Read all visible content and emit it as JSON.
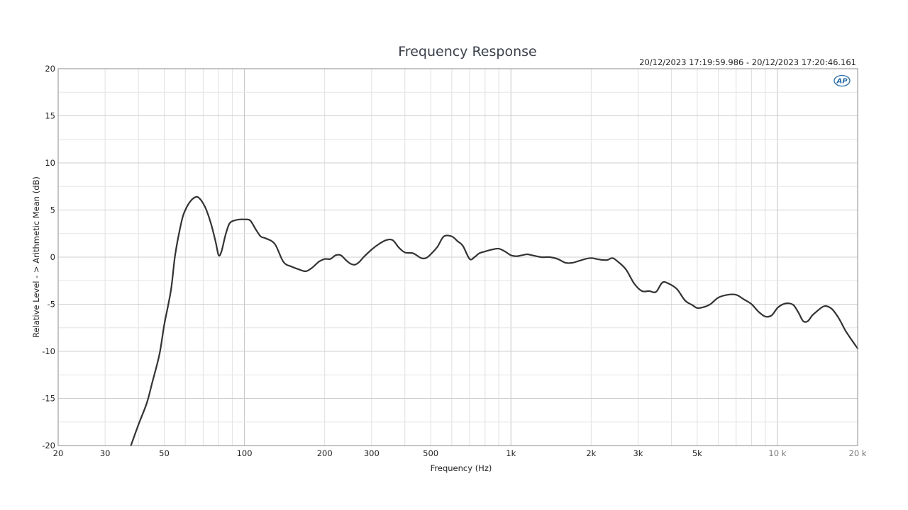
{
  "chart_data": {
    "type": "line",
    "title": "Frequency Response",
    "timestamp": "20/12/2023 17:19:59.986 - 20/12/2023 17:20:46.161",
    "xlabel": "Frequency (Hz)",
    "ylabel": "Relative Level - > Arithmetic Mean (dB)",
    "x_scale": "log",
    "xlim": [
      20,
      20000
    ],
    "ylim": [
      -20,
      20
    ],
    "grid": true,
    "legend": "none",
    "logo": "AP",
    "x_ticks": [
      {
        "value": 20,
        "label": "20"
      },
      {
        "value": 30,
        "label": "30"
      },
      {
        "value": 50,
        "label": "50"
      },
      {
        "value": 100,
        "label": "100"
      },
      {
        "value": 200,
        "label": "200"
      },
      {
        "value": 300,
        "label": "300"
      },
      {
        "value": 500,
        "label": "500"
      },
      {
        "value": 1000,
        "label": "1k"
      },
      {
        "value": 2000,
        "label": "2k"
      },
      {
        "value": 3000,
        "label": "3k"
      },
      {
        "value": 5000,
        "label": "5k"
      },
      {
        "value": 10000,
        "label": "10 k"
      },
      {
        "value": 20000,
        "label": "20 k"
      }
    ],
    "y_ticks": [
      {
        "value": 20,
        "label": "20"
      },
      {
        "value": 15,
        "label": "15"
      },
      {
        "value": 10,
        "label": "10"
      },
      {
        "value": 5,
        "label": "5"
      },
      {
        "value": 0,
        "label": "0"
      },
      {
        "value": -5,
        "label": "-5"
      },
      {
        "value": -10,
        "label": "-10"
      },
      {
        "value": -15,
        "label": "-15"
      },
      {
        "value": -20,
        "label": "-20"
      }
    ],
    "series": [
      {
        "color": "#333333",
        "x": [
          37.5,
          40,
          43,
          45,
          48,
          50,
          53,
          55,
          58,
          60,
          63,
          66,
          68,
          70,
          72,
          75,
          78,
          80,
          82,
          85,
          88,
          92,
          96,
          100,
          105,
          110,
          115,
          120,
          130,
          140,
          150,
          160,
          170,
          180,
          190,
          200,
          210,
          220,
          230,
          240,
          250,
          260,
          270,
          280,
          300,
          320,
          340,
          360,
          380,
          400,
          430,
          460,
          480,
          500,
          530,
          560,
          600,
          630,
          660,
          700,
          730,
          760,
          800,
          850,
          900,
          950,
          1000,
          1050,
          1100,
          1150,
          1200,
          1300,
          1400,
          1500,
          1600,
          1700,
          1800,
          1900,
          2000,
          2100,
          2200,
          2300,
          2400,
          2500,
          2700,
          2900,
          3100,
          3300,
          3500,
          3700,
          3900,
          4200,
          4500,
          4800,
          5000,
          5300,
          5600,
          6000,
          6500,
          7000,
          7500,
          8000,
          8500,
          9000,
          9500,
          10000,
          10500,
          11000,
          11500,
          12000,
          12500,
          13000,
          13500,
          14000,
          15000,
          16000,
          17000,
          18000,
          19000,
          20000
        ],
        "y": [
          -20.0,
          -17.8,
          -15.5,
          -13.4,
          -10.3,
          -7.2,
          -3.5,
          0.3,
          3.7,
          5.0,
          6.0,
          6.4,
          6.2,
          5.7,
          5.0,
          3.5,
          1.6,
          0.2,
          0.6,
          2.4,
          3.6,
          3.9,
          4.0,
          4.0,
          3.9,
          3.0,
          2.2,
          2.0,
          1.4,
          -0.5,
          -1.0,
          -1.3,
          -1.5,
          -1.1,
          -0.5,
          -0.2,
          -0.2,
          0.2,
          0.2,
          -0.3,
          -0.7,
          -0.8,
          -0.5,
          0.0,
          0.8,
          1.4,
          1.8,
          1.8,
          1.0,
          0.5,
          0.4,
          -0.1,
          -0.1,
          0.3,
          1.1,
          2.2,
          2.2,
          1.7,
          1.2,
          -0.2,
          0.0,
          0.4,
          0.6,
          0.8,
          0.9,
          0.6,
          0.2,
          0.1,
          0.2,
          0.3,
          0.2,
          0.0,
          0.0,
          -0.2,
          -0.6,
          -0.6,
          -0.4,
          -0.2,
          -0.1,
          -0.2,
          -0.3,
          -0.3,
          -0.1,
          -0.4,
          -1.3,
          -2.8,
          -3.6,
          -3.6,
          -3.7,
          -2.7,
          -2.8,
          -3.4,
          -4.6,
          -5.1,
          -5.4,
          -5.3,
          -5.0,
          -4.3,
          -4.0,
          -4.0,
          -4.5,
          -5.0,
          -5.8,
          -6.3,
          -6.2,
          -5.4,
          -5.0,
          -4.9,
          -5.1,
          -5.9,
          -6.8,
          -6.8,
          -6.2,
          -5.8,
          -5.2,
          -5.5,
          -6.5,
          -7.8,
          -8.8,
          -9.7
        ]
      }
    ]
  }
}
